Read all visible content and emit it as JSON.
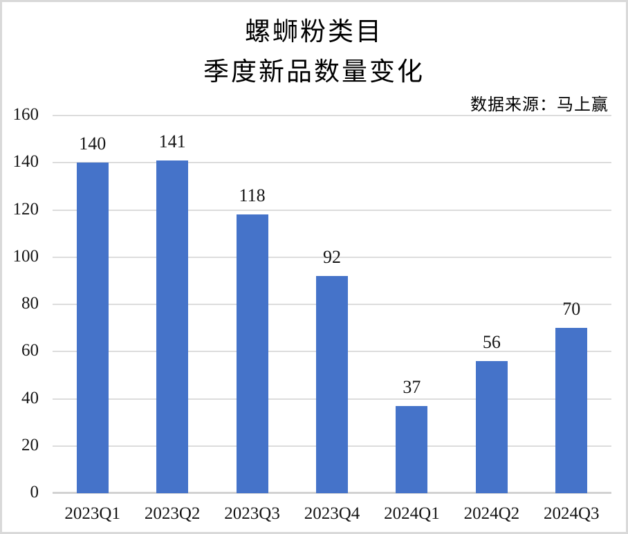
{
  "header": {
    "title_line1": "螺蛳粉类目",
    "title_line2": "季度新品数量变化",
    "source": "数据来源：马上赢"
  },
  "chart_data": {
    "type": "bar",
    "title": "螺蛳粉类目 季度新品数量变化",
    "subtitle": "数据来源：马上赢",
    "categories": [
      "2023Q1",
      "2023Q2",
      "2023Q3",
      "2023Q4",
      "2024Q1",
      "2024Q2",
      "2024Q3"
    ],
    "values": [
      140,
      141,
      118,
      92,
      37,
      56,
      70
    ],
    "data_labels": [
      "140",
      "141",
      "118",
      "92",
      "37",
      "56",
      "70"
    ],
    "xlabel": "",
    "ylabel": "",
    "ylim": [
      0,
      160
    ],
    "yticks": [
      0,
      20,
      40,
      60,
      80,
      100,
      120,
      140,
      160
    ],
    "grid": true,
    "legend": "none",
    "colors": {
      "bar": "#4573c9",
      "gridline": "#dcdcdc",
      "axis_line": "#d2d2d2",
      "text": "#141414",
      "frame_border": "#d9d9d9",
      "background": "#ffffff"
    }
  }
}
